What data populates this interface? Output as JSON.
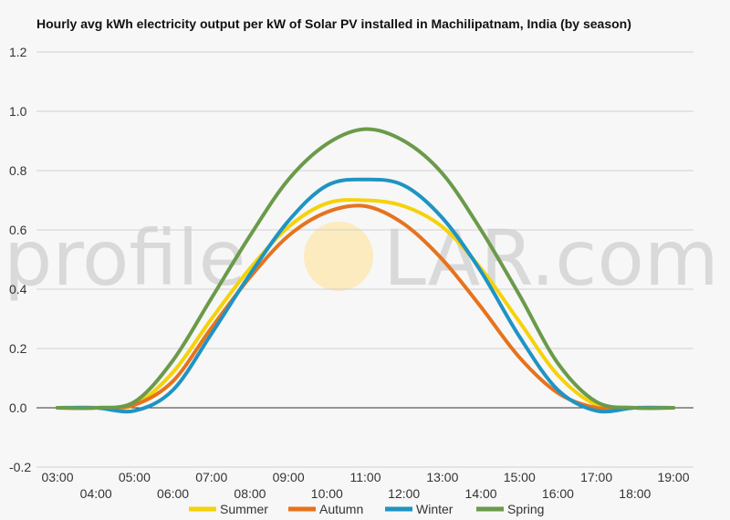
{
  "chart_data": {
    "type": "line",
    "title": "Hourly avg kWh electricity output per kW of Solar PV installed in Machilipatnam, India (by season)",
    "watermark": {
      "left": "profile",
      "right": "LAR.com"
    },
    "x": [
      "03:00",
      "04:00",
      "05:00",
      "06:00",
      "07:00",
      "08:00",
      "09:00",
      "10:00",
      "11:00",
      "12:00",
      "13:00",
      "14:00",
      "15:00",
      "16:00",
      "17:00",
      "18:00",
      "19:00"
    ],
    "ylim": [
      -0.2,
      1.2
    ],
    "yticks": [
      "-0.2",
      "0.0",
      "0.2",
      "0.4",
      "0.6",
      "0.8",
      "1.0",
      "1.2"
    ],
    "grid": true,
    "legend_position": "bottom",
    "series": [
      {
        "name": "Summer",
        "color": "#f5d20a",
        "values": [
          0,
          0,
          0.01,
          0.12,
          0.3,
          0.47,
          0.61,
          0.69,
          0.7,
          0.68,
          0.61,
          0.47,
          0.29,
          0.11,
          0.01,
          0,
          0
        ]
      },
      {
        "name": "Autumn",
        "color": "#e6731e",
        "values": [
          0,
          0,
          0.01,
          0.09,
          0.27,
          0.44,
          0.58,
          0.66,
          0.68,
          0.62,
          0.5,
          0.34,
          0.17,
          0.05,
          0,
          0,
          0
        ]
      },
      {
        "name": "Winter",
        "color": "#1f94c3",
        "values": [
          0,
          0,
          -0.01,
          0.06,
          0.25,
          0.45,
          0.63,
          0.75,
          0.77,
          0.75,
          0.64,
          0.46,
          0.24,
          0.06,
          -0.01,
          0,
          0
        ]
      },
      {
        "name": "Spring",
        "color": "#6b9a4a",
        "values": [
          0,
          0,
          0.02,
          0.16,
          0.37,
          0.58,
          0.77,
          0.89,
          0.94,
          0.9,
          0.79,
          0.6,
          0.38,
          0.15,
          0.02,
          0,
          0
        ]
      }
    ]
  }
}
